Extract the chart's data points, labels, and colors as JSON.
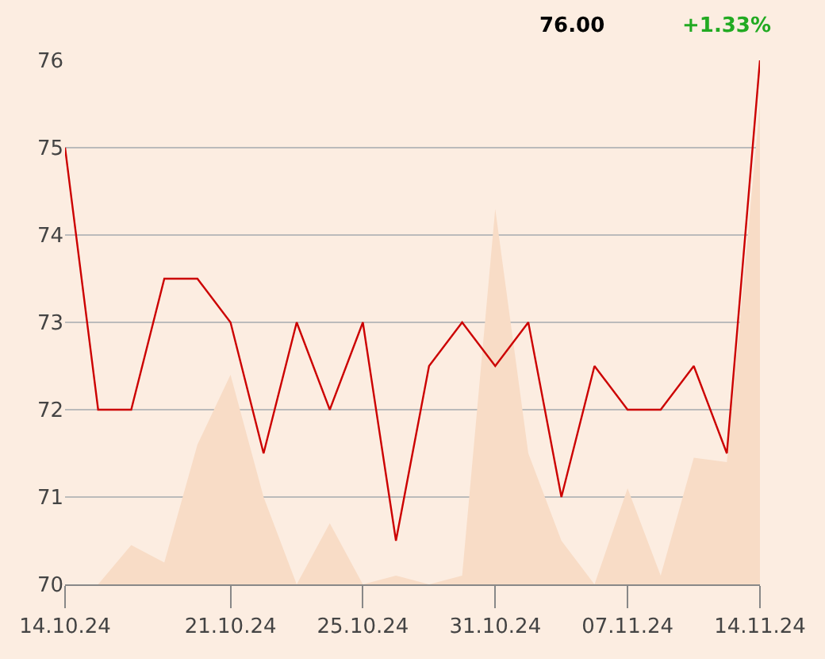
{
  "chart_data": {
    "type": "line",
    "categories": [
      "14.10.24",
      null,
      null,
      null,
      null,
      "21.10.24",
      null,
      null,
      null,
      "25.10.24",
      null,
      null,
      null,
      "31.10.24",
      null,
      null,
      null,
      "07.11.24",
      null,
      null,
      null,
      "14.11.24"
    ],
    "series": [
      {
        "type": "area",
        "color": "#f8dcc6",
        "values": [
          70.0,
          70.0,
          70.45,
          70.25,
          71.6,
          72.4,
          71.0,
          70.0,
          70.7,
          70.0,
          70.1,
          70.0,
          70.1,
          74.3,
          71.5,
          70.5,
          70.0,
          71.1,
          70.1,
          71.45,
          71.4,
          75.5
        ]
      },
      {
        "color": "#cc0000",
        "values": [
          75.0,
          72.0,
          72.0,
          73.5,
          73.5,
          73.0,
          71.5,
          73.0,
          72.0,
          73.0,
          70.5,
          72.5,
          73.0,
          72.5,
          73.0,
          71.0,
          72.5,
          72.0,
          72.0,
          72.5,
          71.5,
          76.0
        ]
      }
    ],
    "ylim": [
      70,
      76
    ],
    "yticks": [
      70,
      71,
      72,
      73,
      74,
      75,
      76
    ],
    "grid": "y",
    "marker": "none",
    "annotations": [
      "76.00",
      "+1.33%"
    ]
  }
}
